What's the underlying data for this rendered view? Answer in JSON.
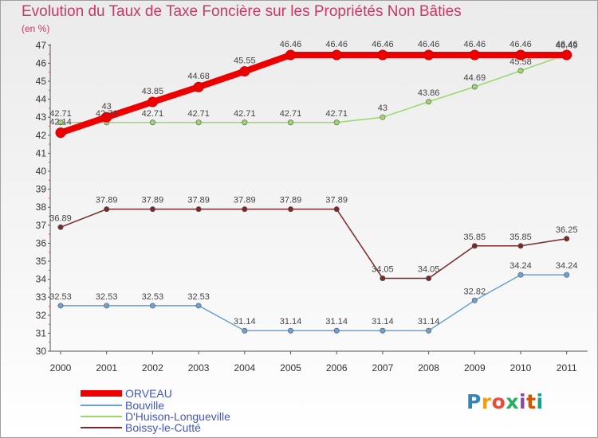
{
  "title": "Evolution du Taux de Taxe Foncière sur les Propriétés Non Bâties",
  "unit": "(en %)",
  "brand": "Proxiti",
  "chart_data": {
    "type": "line",
    "categories": [
      "2000",
      "2001",
      "2002",
      "2003",
      "2004",
      "2005",
      "2006",
      "2007",
      "2008",
      "2009",
      "2010",
      "2011"
    ],
    "ylim": [
      30,
      47
    ],
    "yticks": [
      30,
      31,
      32,
      33,
      34,
      35,
      36,
      37,
      38,
      39,
      40,
      41,
      42,
      43,
      44,
      45,
      46,
      47
    ],
    "grid": false,
    "series": [
      {
        "name": "ORVEAU",
        "color": "#ee0000",
        "values": [
          42.14,
          43,
          43.85,
          44.68,
          45.55,
          46.46,
          46.46,
          46.46,
          46.46,
          46.46,
          46.46,
          46.46
        ],
        "labels": [
          "42.14",
          "43",
          "43.85",
          "44.68",
          "45.55",
          "46.46",
          "46.46",
          "46.46",
          "46.46",
          "46.46",
          "46.46",
          "46.46"
        ]
      },
      {
        "name": "Bouville",
        "color": "#6aa2d6",
        "values": [
          32.53,
          32.53,
          32.53,
          32.53,
          31.14,
          31.14,
          31.14,
          31.14,
          31.14,
          32.82,
          34.24,
          34.24
        ],
        "labels": [
          "32.53",
          "32.53",
          "32.53",
          "32.53",
          "31.14",
          "31.14",
          "31.14",
          "31.14",
          "31.14",
          "32.82",
          "34.24",
          "34.24"
        ]
      },
      {
        "name": "D'Huison-Longueville",
        "color": "#9ad86a",
        "values": [
          42.71,
          42.71,
          42.71,
          42.71,
          42.71,
          42.71,
          42.71,
          43,
          43.86,
          44.69,
          45.58,
          46.49
        ],
        "labels": [
          "42.71",
          "42.71",
          "42.71",
          "42.71",
          "42.71",
          "42.71",
          "42.71",
          "43",
          "43.86",
          "44.69",
          "45.58",
          "46.49"
        ]
      },
      {
        "name": "Boissy-le-Cutté",
        "color": "#7a2a2a",
        "values": [
          36.89,
          37.89,
          37.89,
          37.89,
          37.89,
          37.89,
          37.89,
          34.05,
          34.05,
          35.85,
          35.85,
          36.25
        ],
        "labels": [
          "36.89",
          "37.89",
          "37.89",
          "37.89",
          "37.89",
          "37.89",
          "37.89",
          "34.05",
          "34.05",
          "35.85",
          "35.85",
          "36.25"
        ]
      }
    ]
  }
}
